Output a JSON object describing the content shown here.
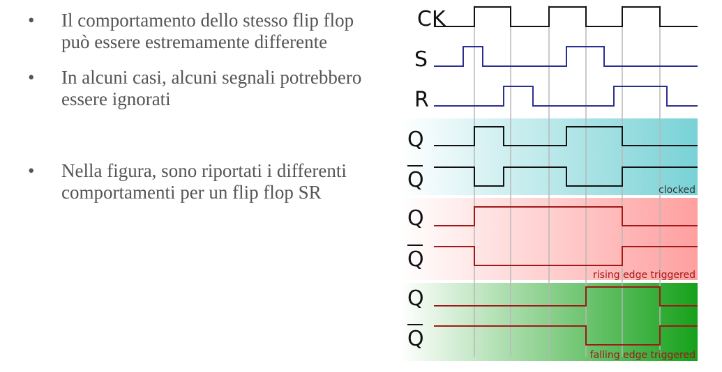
{
  "bullets": [
    "Il comportamento dello stesso flip flop può essere estremamente differente",
    "In alcuni casi, alcuni segnali potrebbero essere ignorati",
    "Nella figura, sono riportati i differenti comportamenti per un flip flop SR"
  ],
  "bullet_glyph": "•",
  "diagram": {
    "signals": {
      "ck": {
        "label": "CK",
        "color": "#111111",
        "levels": [
          0,
          1,
          0,
          1,
          0,
          1,
          0
        ]
      },
      "s": {
        "label": "S",
        "color": "#2a2f8f",
        "levels": [
          0,
          1,
          0,
          0,
          1,
          0,
          0
        ]
      },
      "r": {
        "label": "R",
        "color": "#2a2f8f",
        "levels": [
          0,
          1,
          0,
          0,
          1,
          0,
          0
        ]
      }
    },
    "panels": [
      {
        "id": "clocked",
        "label": "clocked",
        "label_color": "#333333",
        "bg_from": "#ffffff",
        "bg_to": "#78d2d6",
        "line_color": "#111111",
        "q_label": "Q",
        "qbar_label": "Q"
      },
      {
        "id": "rising",
        "label": "rising edge triggered",
        "label_color": "#a01818",
        "bg_from": "#ffffff",
        "bg_to": "#ff9f9f",
        "line_color": "#a01818",
        "q_label": "Q",
        "qbar_label": "Q"
      },
      {
        "id": "falling",
        "label": "falling edge triggered",
        "label_color": "#a01818",
        "bg_from": "#ffffff",
        "bg_to": "#16a11a",
        "line_color": "#a01818",
        "q_label": "Q",
        "qbar_label": "Q"
      }
    ]
  }
}
